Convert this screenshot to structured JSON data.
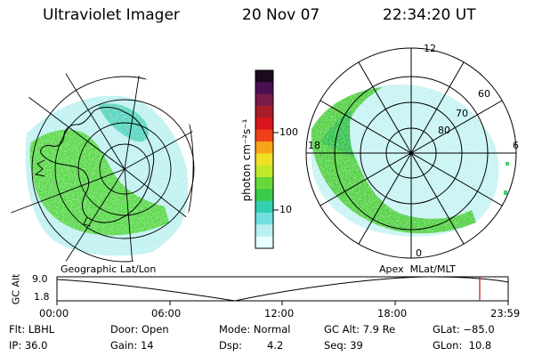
{
  "header": {
    "title": "Ultraviolet Imager",
    "date": "20 Nov 07",
    "time": "22:34:20 UT"
  },
  "left_map": {
    "label": "Geographic Lat/Lon"
  },
  "colorbar": {
    "unit_label": "photon cm⁻²s⁻¹",
    "ticks": [
      "100",
      "10"
    ],
    "colors": [
      "#1a0a1e",
      "#4a1050",
      "#7a1a4a",
      "#a81e28",
      "#d8161c",
      "#f0401a",
      "#f8a418",
      "#f0e028",
      "#c0e828",
      "#68d838",
      "#38cc48",
      "#30d0b0",
      "#70e0e0",
      "#b8f0f0",
      "#e8ffff"
    ]
  },
  "right_map": {
    "label": "Apex  MLat/MLT",
    "lat_labels": [
      "60",
      "70",
      "80"
    ],
    "mlt_labels": {
      "top": "12",
      "left": "18",
      "right": "6",
      "bottom": "0"
    }
  },
  "track": {
    "ylabel": "GC Alt",
    "ytick_top": "9.0",
    "ytick_bottom": "1.8",
    "xticks": [
      "00:00",
      "06:00",
      "12:00",
      "18:00",
      "23:59"
    ],
    "marker_time": "22:34"
  },
  "footer": {
    "flt": "Flt: LBHL",
    "door": "Door: Open",
    "mode": "Mode: Normal",
    "gcalt": "GC Alt: 7.9 Re",
    "glat": "GLat: −85.0",
    "ip": "IP: 36.0",
    "gain": "Gain: 14",
    "dsp_label": "Dsp:",
    "dsp_value": "4.2",
    "seq": "Seq: 39",
    "glon": "GLon:  10.8"
  }
}
